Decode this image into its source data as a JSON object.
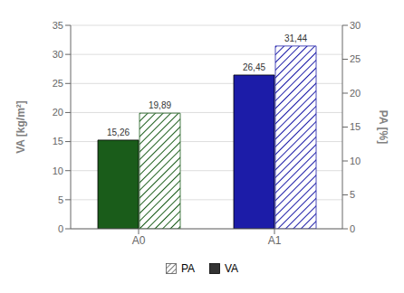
{
  "chart_data": {
    "type": "bar",
    "categories": [
      "A0",
      "A1"
    ],
    "series": [
      {
        "name": "VA",
        "color": "#333333",
        "colors": [
          "#1a5c1a",
          "#1c1ca8"
        ],
        "values": [
          15.26,
          26.45
        ],
        "value_labels": [
          "15,26",
          "26,45"
        ]
      },
      {
        "name": "PA",
        "color": "#555555",
        "colors": [
          "#1a5c1a",
          "#1c1ca8"
        ],
        "values": [
          19.89,
          31.44
        ],
        "value_labels": [
          "19,89",
          "31,44"
        ]
      }
    ],
    "ylabel": "VA [kg/m²]",
    "y2label": "PA [%]",
    "ylim": [
      0,
      35
    ],
    "yticks": [
      0,
      5,
      10,
      15,
      20,
      25,
      30,
      35
    ],
    "y2lim": [
      0,
      30
    ],
    "y2ticks": [
      0,
      5,
      10,
      15,
      20,
      25,
      30
    ],
    "grid": true,
    "data_labels": true,
    "legend": "bottom"
  }
}
